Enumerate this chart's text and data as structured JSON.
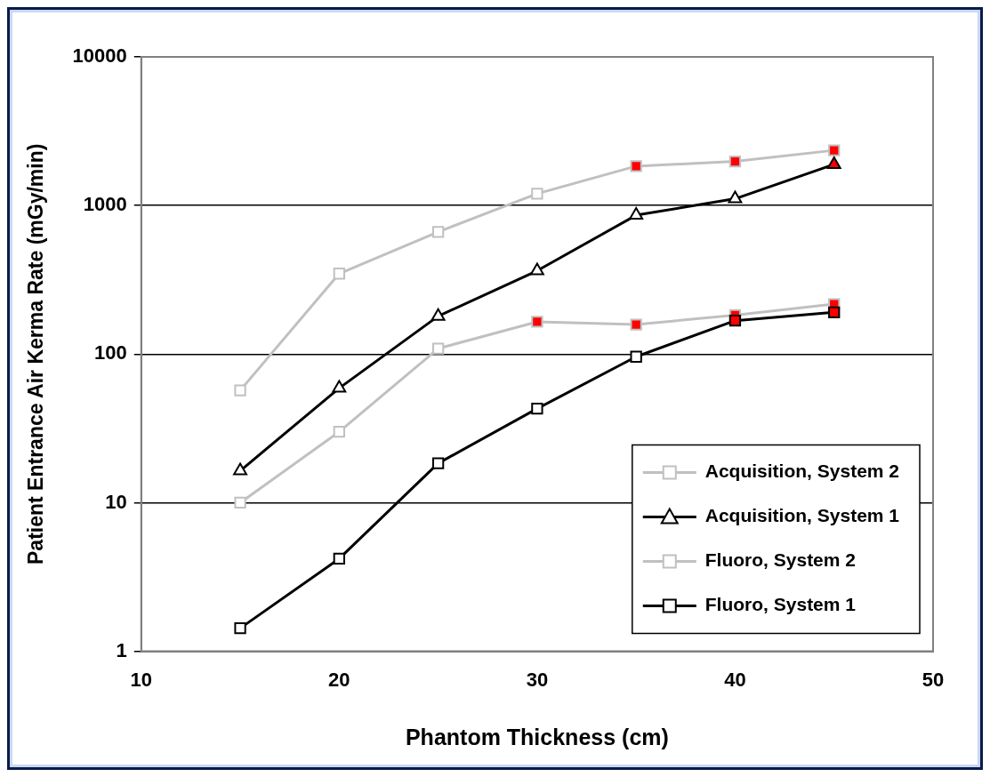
{
  "chart_data": {
    "type": "line",
    "xlabel": "Phantom Thickness (cm)",
    "ylabel": "Patient Entrance Air Kerma Rate (mGy/min)",
    "x": [
      15,
      20,
      25,
      30,
      35,
      40,
      45
    ],
    "xlim": [
      10,
      50
    ],
    "xticks": [
      10,
      20,
      30,
      40,
      50
    ],
    "ylim": [
      1,
      10000
    ],
    "yticks": [
      1,
      10,
      100,
      1000,
      10000
    ],
    "log": "y",
    "grid": "y",
    "legend": "bottom right",
    "line_style": "solid",
    "series": [
      {
        "name": "Acquisition, System 2",
        "color": "#c0c0c0",
        "marker": "square",
        "values": [
          57,
          348,
          664,
          1200,
          1840,
          1980,
          2350
        ],
        "colors": [
          "#ffffff",
          "#ffffff",
          "#ffffff",
          "#ffffff",
          "#ff0000",
          "#ff0000",
          "#ff0000"
        ]
      },
      {
        "name": "Acquisition, System 1",
        "color": "#000000",
        "marker": "triangle",
        "values": [
          16.4,
          59,
          180,
          364,
          860,
          1110,
          1890
        ],
        "colors": [
          "#ffffff",
          "#ffffff",
          "#ffffff",
          "#ffffff",
          "#ffffff",
          "#ffffff",
          "#ff0000"
        ]
      },
      {
        "name": "Fluoro, System 2",
        "color": "#c0c0c0",
        "marker": "square",
        "values": [
          10,
          30,
          109,
          165,
          158,
          183,
          217
        ],
        "colors": [
          "#ffffff",
          "#ffffff",
          "#ffffff",
          "#ff0000",
          "#ff0000",
          "#ff0000",
          "#ff0000"
        ]
      },
      {
        "name": "Fluoro, System 1",
        "color": "#000000",
        "marker": "square",
        "values": [
          1.43,
          4.2,
          18.4,
          43,
          96,
          168,
          191
        ],
        "colors": [
          "#ffffff",
          "#ffffff",
          "#ffffff",
          "#ffffff",
          "#ffffff",
          "#ff0000",
          "#ff0000"
        ]
      }
    ]
  }
}
